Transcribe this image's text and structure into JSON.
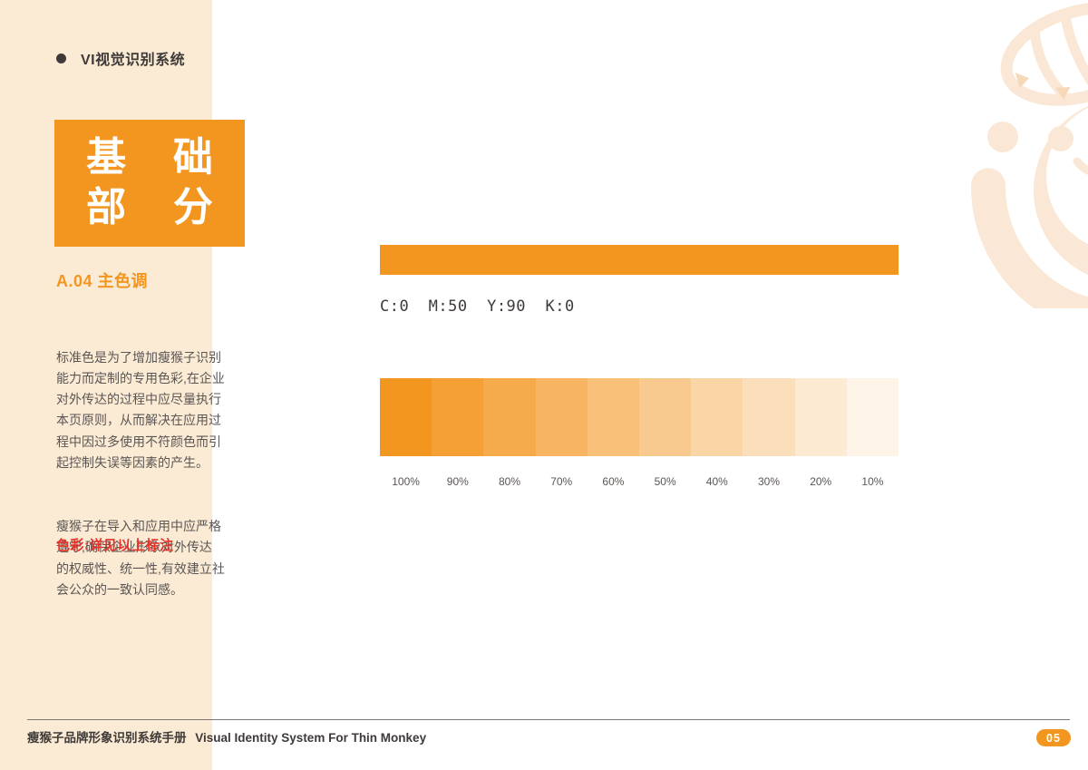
{
  "header": {
    "title": "VI视觉识别系统"
  },
  "sidebar": {
    "title_line1": "基 础",
    "title_line2": "部 分",
    "section_heading": "A.04 主色调",
    "paragraph1": "标准色是为了增加瘦猴子识别\n能力而定制的专用色彩,在企业\n对外传达的过程中应尽量执行\n本页原则，从而解决在应用过\n程中因过多使用不符颜色而引\n起控制失误等因素的产生。",
    "paragraph2": "瘦猴子在导入和应用中应严格\n遵守,确保企业形象对外传达\n的权威性、统一性,有效建立社\n会公众的一致认同感。",
    "note": "色彩:详见以上标注"
  },
  "main": {
    "cmyk_label": "C:0  M:50  Y:90  K:0",
    "tints": [
      {
        "label": "100%",
        "opacity": 1.0
      },
      {
        "label": "90%",
        "opacity": 0.9
      },
      {
        "label": "80%",
        "opacity": 0.8
      },
      {
        "label": "70%",
        "opacity": 0.7
      },
      {
        "label": "60%",
        "opacity": 0.6
      },
      {
        "label": "50%",
        "opacity": 0.5
      },
      {
        "label": "40%",
        "opacity": 0.4
      },
      {
        "label": "30%",
        "opacity": 0.3
      },
      {
        "label": "20%",
        "opacity": 0.2
      },
      {
        "label": "10%",
        "opacity": 0.1
      }
    ]
  },
  "footer": {
    "title_cn": "瘦猴子品牌形象识别系统手册",
    "title_en": "Visual Identity System For Thin Monkey",
    "page_number": "05"
  },
  "colors": {
    "primary": "#F3961F",
    "sidebar_bg": "#FBEAD4",
    "text_dark": "#3E3A39",
    "text_gray": "#5A5654",
    "note_red": "#E5332A",
    "watermark_peach": "#FAE7D5",
    "watermark_accent": "#F7D9BA"
  }
}
